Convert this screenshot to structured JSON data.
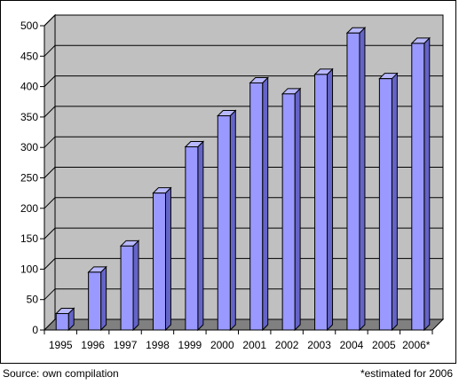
{
  "chart_data": {
    "type": "bar",
    "style": "3d-columns",
    "categories": [
      "1995",
      "1996",
      "1997",
      "1998",
      "1999",
      "2000",
      "2001",
      "2002",
      "2003",
      "2004",
      "2005",
      "2006*"
    ],
    "values": [
      27,
      95,
      138,
      225,
      301,
      352,
      406,
      388,
      420,
      488,
      413,
      471
    ],
    "ylim": [
      0,
      500
    ],
    "y_ticks": [
      "0",
      "50",
      "100",
      "150",
      "200",
      "250",
      "300",
      "350",
      "400",
      "450",
      "500"
    ],
    "grid": true,
    "legend": "none",
    "colors": {
      "bar_front": "#9999ff",
      "bar_side": "#6464c8",
      "bar_top": "#b8b8ff",
      "wall": "#c0c0c0",
      "floor": "#808080",
      "gridline": "#000000"
    }
  },
  "footer": {
    "source": "Source: own compilation",
    "footnote": "*estimated for 2006"
  }
}
